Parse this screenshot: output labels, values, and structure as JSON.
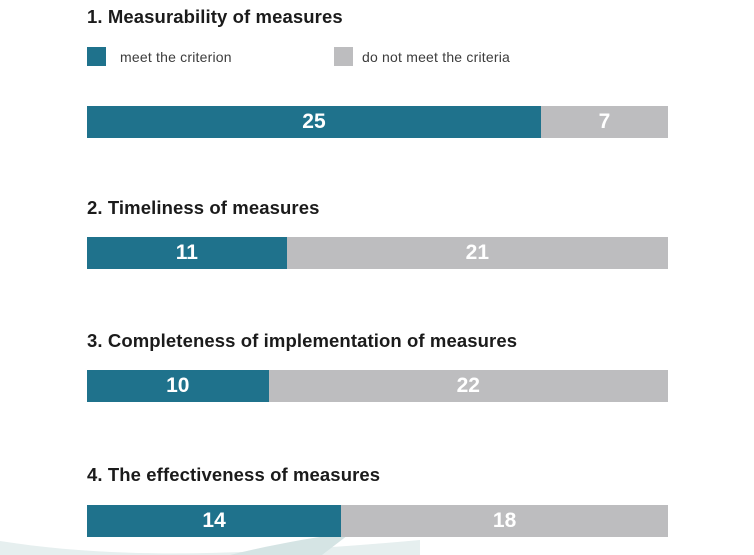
{
  "colors": {
    "meet": "#1f728c",
    "not_meet": "#bdbdbf"
  },
  "legend": {
    "meet_label": "meet the criterion",
    "not_meet_label": "do not meet the criteria"
  },
  "sections": [
    {
      "title": "1. Measurability of measures"
    },
    {
      "title": "2. Timeliness of measures"
    },
    {
      "title": "3. Completeness of implementation of measures"
    },
    {
      "title": "4. The effectiveness of measures"
    }
  ],
  "chart_data": {
    "type": "bar",
    "orientation": "horizontal",
    "stacked": true,
    "categories": [
      "1. Measurability of measures",
      "2. Timeliness of measures",
      "3. Completeness of implementation of measures",
      "4. The effectiveness of measures"
    ],
    "series": [
      {
        "name": "meet the criterion",
        "values": [
          25,
          11,
          10,
          14
        ]
      },
      {
        "name": "do not meet the criteria",
        "values": [
          7,
          21,
          22,
          18
        ]
      }
    ],
    "legend_position": "top-left",
    "grid": false
  }
}
